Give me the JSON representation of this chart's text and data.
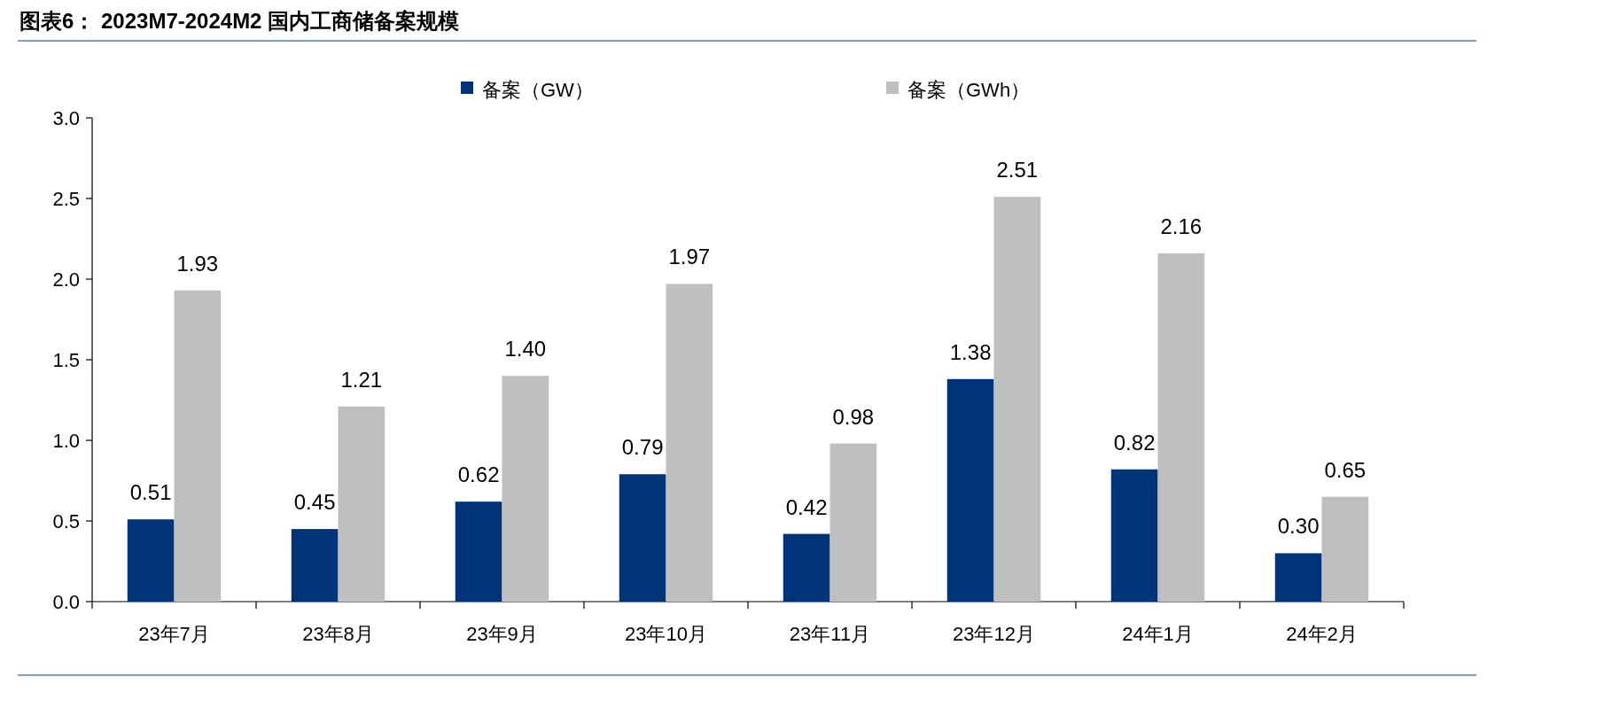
{
  "chart_data": {
    "type": "bar",
    "title": "图表6： 2023M7-2024M2 国内工商储备案规模",
    "categories": [
      "23年7月",
      "23年8月",
      "23年9月",
      "23年10月",
      "23年11月",
      "23年12月",
      "24年1月",
      "24年2月"
    ],
    "series": [
      {
        "name": "备案（GW）",
        "color": "#003479",
        "values": [
          0.51,
          0.45,
          0.62,
          0.79,
          0.42,
          1.38,
          0.82,
          0.3
        ],
        "value_labels": [
          "0.51",
          "0.45",
          "0.62",
          "0.79",
          "0.42",
          "1.38",
          "0.82",
          "0.30"
        ]
      },
      {
        "name": "备案（GWh）",
        "color": "#bfbfbf",
        "values": [
          1.93,
          1.21,
          1.4,
          1.97,
          0.98,
          2.51,
          2.16,
          0.65
        ],
        "value_labels": [
          "1.93",
          "1.21",
          "1.40",
          "1.97",
          "0.98",
          "2.51",
          "2.16",
          "0.65"
        ]
      }
    ],
    "ylim": [
      0,
      3
    ],
    "yticks": [
      {
        "value": 0,
        "label": "0.0"
      },
      0.5,
      {
        "value": 1,
        "label": "1.0"
      },
      1.5,
      {
        "value": 2,
        "label": "2.0"
      },
      2.5,
      {
        "value": 3,
        "label": "3.0"
      }
    ],
    "grid": false,
    "legend": "top"
  }
}
